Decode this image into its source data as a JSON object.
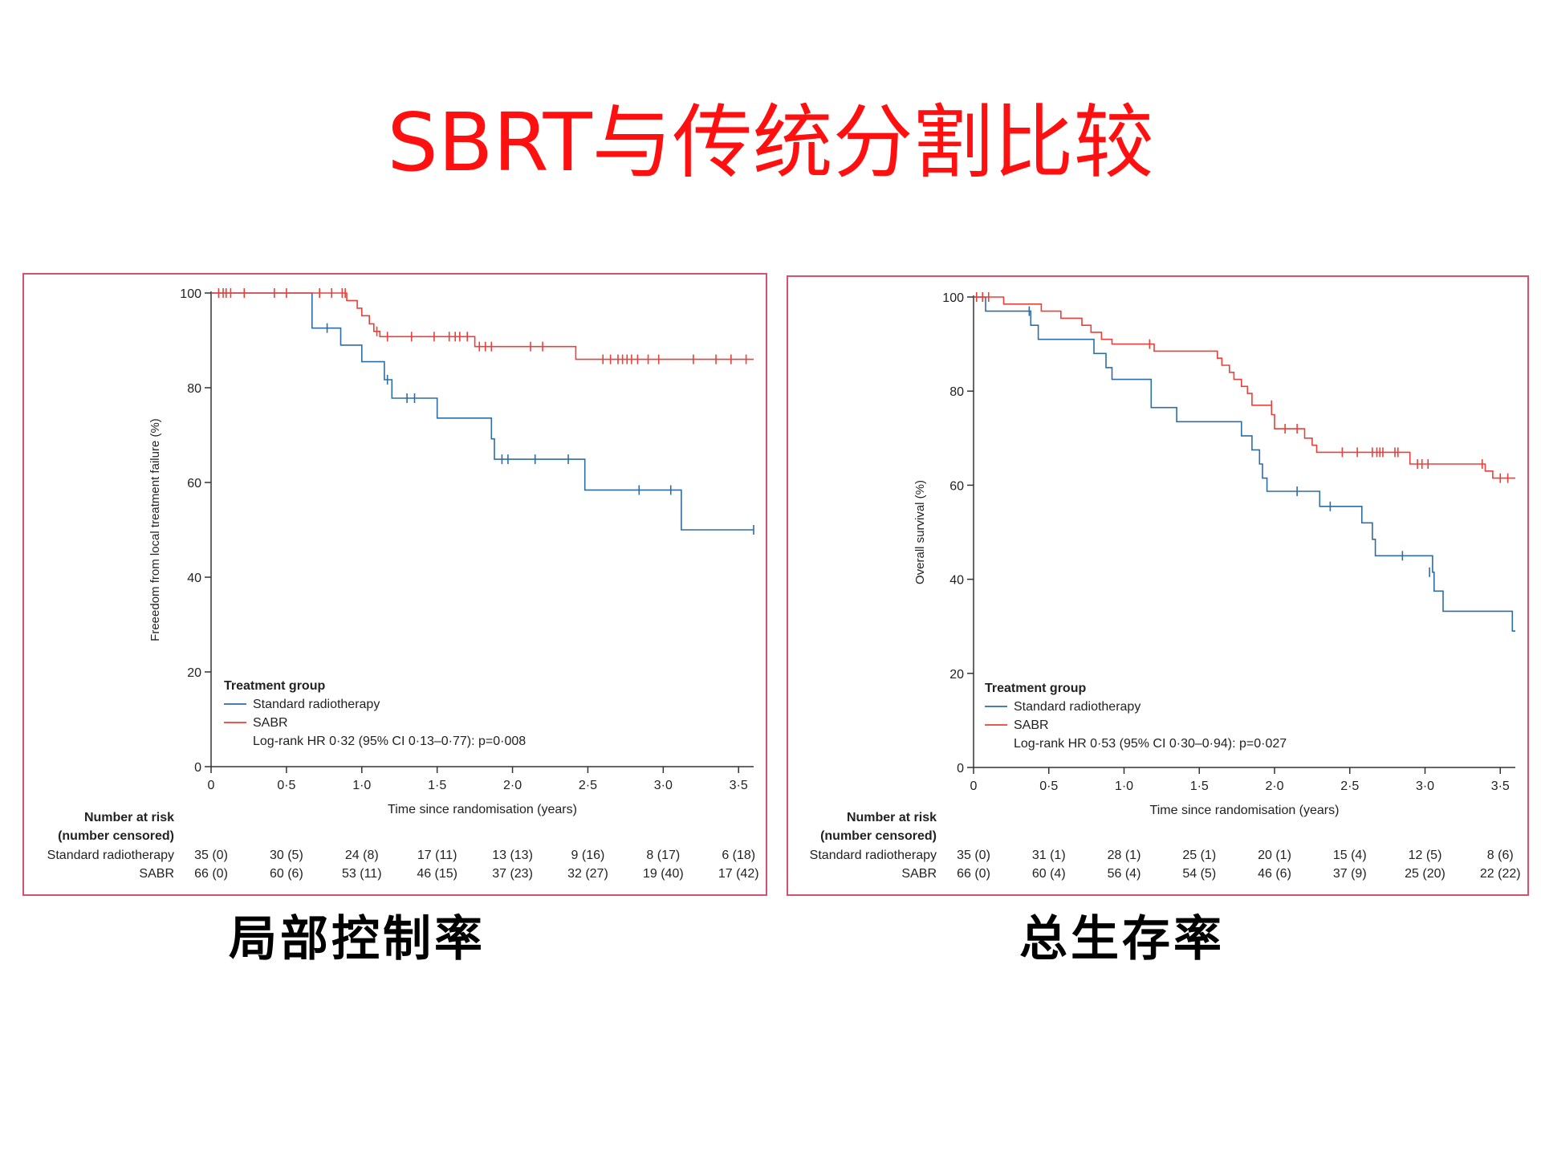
{
  "slide": {
    "title": "SBRT与传统分割比较",
    "caption_left": "局部控制率",
    "caption_right": "总生存率"
  },
  "chart_data": [
    {
      "type": "line",
      "title": "",
      "xlabel": "Time since randomisation (years)",
      "ylabel": "Freeedom from local treatment failure (%)",
      "xlim": [
        0,
        3.6
      ],
      "ylim": [
        0,
        100
      ],
      "xticks": [
        0,
        0.5,
        1.0,
        1.5,
        2.0,
        2.5,
        3.0,
        3.5
      ],
      "xtick_labels": [
        "0",
        "0·5",
        "1·0",
        "1·5",
        "2·0",
        "2·5",
        "3·0",
        "3·5"
      ],
      "yticks": [
        0,
        20,
        40,
        60,
        80,
        100
      ],
      "ytick_labels": [
        "0",
        "20",
        "40",
        "60",
        "80",
        "100"
      ],
      "legend": {
        "title": "Treatment group",
        "stat": "Log-rank HR 0·32 (95% CI 0·13–0·77): p=0·008",
        "placement": "bottom-left"
      },
      "series": [
        {
          "name": "Standard radiotherapy",
          "color": "#2e6da4",
          "steps": [
            [
              0,
              100
            ],
            [
              0.67,
              100
            ],
            [
              0.67,
              92.6
            ],
            [
              0.86,
              92.6
            ],
            [
              0.86,
              89
            ],
            [
              1.0,
              89
            ],
            [
              1.0,
              85.5
            ],
            [
              1.15,
              85.5
            ],
            [
              1.15,
              81.7
            ],
            [
              1.2,
              81.7
            ],
            [
              1.2,
              77.8
            ],
            [
              1.5,
              77.8
            ],
            [
              1.5,
              73.6
            ],
            [
              1.86,
              73.6
            ],
            [
              1.86,
              69.2
            ],
            [
              1.88,
              69.2
            ],
            [
              1.88,
              64.9
            ],
            [
              2.48,
              64.9
            ],
            [
              2.48,
              58.4
            ],
            [
              3.12,
              58.4
            ],
            [
              3.12,
              50
            ],
            [
              3.6,
              50
            ]
          ],
          "censors": [
            [
              0.77,
              92.6
            ],
            [
              1.17,
              81.7
            ],
            [
              1.3,
              77.8
            ],
            [
              1.35,
              77.8
            ],
            [
              1.93,
              64.9
            ],
            [
              1.97,
              64.9
            ],
            [
              2.15,
              64.9
            ],
            [
              2.37,
              64.9
            ],
            [
              2.84,
              58.4
            ],
            [
              3.05,
              58.4
            ],
            [
              3.6,
              50
            ]
          ]
        },
        {
          "name": "SABR",
          "color": "#e8403a",
          "steps": [
            [
              0,
              100
            ],
            [
              0.9,
              100
            ],
            [
              0.9,
              98.4
            ],
            [
              0.97,
              98.4
            ],
            [
              0.97,
              96.8
            ],
            [
              1.0,
              96.8
            ],
            [
              1.0,
              95.2
            ],
            [
              1.05,
              95.2
            ],
            [
              1.05,
              93.5
            ],
            [
              1.08,
              93.5
            ],
            [
              1.08,
              91.9
            ],
            [
              1.12,
              91.9
            ],
            [
              1.12,
              90.8
            ],
            [
              1.75,
              90.8
            ],
            [
              1.75,
              88.7
            ],
            [
              2.42,
              88.7
            ],
            [
              2.42,
              86
            ],
            [
              3.6,
              86
            ]
          ],
          "censors": [
            [
              0.05,
              100
            ],
            [
              0.08,
              100
            ],
            [
              0.1,
              100
            ],
            [
              0.13,
              100
            ],
            [
              0.22,
              100
            ],
            [
              0.42,
              100
            ],
            [
              0.5,
              100
            ],
            [
              0.72,
              100
            ],
            [
              0.8,
              100
            ],
            [
              0.87,
              100
            ],
            [
              0.89,
              100
            ],
            [
              1.1,
              91.9
            ],
            [
              1.17,
              90.8
            ],
            [
              1.33,
              90.8
            ],
            [
              1.48,
              90.8
            ],
            [
              1.58,
              90.8
            ],
            [
              1.62,
              90.8
            ],
            [
              1.65,
              90.8
            ],
            [
              1.7,
              90.8
            ],
            [
              1.78,
              88.7
            ],
            [
              1.82,
              88.7
            ],
            [
              1.86,
              88.7
            ],
            [
              2.12,
              88.7
            ],
            [
              2.2,
              88.7
            ],
            [
              2.6,
              86
            ],
            [
              2.65,
              86
            ],
            [
              2.7,
              86
            ],
            [
              2.73,
              86
            ],
            [
              2.76,
              86
            ],
            [
              2.79,
              86
            ],
            [
              2.83,
              86
            ],
            [
              2.9,
              86
            ],
            [
              2.97,
              86
            ],
            [
              3.2,
              86
            ],
            [
              3.35,
              86
            ],
            [
              3.45,
              86
            ],
            [
              3.55,
              86
            ]
          ]
        }
      ],
      "risk_table": {
        "header_line1": "Number at risk",
        "header_line2": "(number censored)",
        "rows": [
          {
            "label": "Standard radiotherapy",
            "values": [
              "35 (0)",
              "30 (5)",
              "24 (8)",
              "17 (11)",
              "13 (13)",
              "9 (16)",
              "8 (17)",
              "6 (18)"
            ]
          },
          {
            "label": "SABR",
            "values": [
              "66 (0)",
              "60 (6)",
              "53 (11)",
              "46 (15)",
              "37 (23)",
              "32 (27)",
              "19 (40)",
              "17 (42)"
            ]
          }
        ]
      }
    },
    {
      "type": "line",
      "title": "",
      "xlabel": "Time since randomisation (years)",
      "ylabel": "Overall survival (%)",
      "xlim": [
        0,
        3.6
      ],
      "ylim": [
        0,
        100
      ],
      "xticks": [
        0,
        0.5,
        1.0,
        1.5,
        2.0,
        2.5,
        3.0,
        3.5
      ],
      "xtick_labels": [
        "0",
        "0·5",
        "1·0",
        "1·5",
        "2·0",
        "2·5",
        "3·0",
        "3·5"
      ],
      "yticks": [
        0,
        20,
        40,
        60,
        80,
        100
      ],
      "ytick_labels": [
        "0",
        "20",
        "40",
        "60",
        "80",
        "100"
      ],
      "legend": {
        "title": "Treatment group",
        "stat": "Log-rank HR 0·53 (95% CI 0·30–0·94): p=0·027",
        "placement": "bottom-left"
      },
      "series": [
        {
          "name": "Standard radiotherapy",
          "color": "#2e6da4",
          "steps": [
            [
              0,
              100
            ],
            [
              0.08,
              100
            ],
            [
              0.08,
              97
            ],
            [
              0.38,
              97
            ],
            [
              0.38,
              94
            ],
            [
              0.43,
              94
            ],
            [
              0.43,
              91
            ],
            [
              0.8,
              91
            ],
            [
              0.8,
              88
            ],
            [
              0.88,
              88
            ],
            [
              0.88,
              85
            ],
            [
              0.92,
              85
            ],
            [
              0.92,
              82.5
            ],
            [
              1.18,
              82.5
            ],
            [
              1.18,
              79.5
            ],
            [
              1.18,
              79.5
            ],
            [
              1.18,
              76.5
            ],
            [
              1.35,
              76.5
            ],
            [
              1.35,
              73.5
            ],
            [
              1.78,
              73.5
            ],
            [
              1.78,
              70.5
            ],
            [
              1.85,
              70.5
            ],
            [
              1.85,
              67.5
            ],
            [
              1.9,
              67.5
            ],
            [
              1.9,
              64.5
            ],
            [
              1.92,
              64.5
            ],
            [
              1.92,
              61.5
            ],
            [
              1.95,
              61.5
            ],
            [
              1.95,
              58.7
            ],
            [
              2.3,
              58.7
            ],
            [
              2.3,
              55.5
            ],
            [
              2.58,
              55.5
            ],
            [
              2.58,
              52
            ],
            [
              2.65,
              52
            ],
            [
              2.65,
              48.5
            ],
            [
              2.67,
              48.5
            ],
            [
              2.67,
              45
            ],
            [
              3.05,
              45
            ],
            [
              3.05,
              41.5
            ],
            [
              3.06,
              41.5
            ],
            [
              3.06,
              37.5
            ],
            [
              3.12,
              37.5
            ],
            [
              3.12,
              33.2
            ],
            [
              3.58,
              33.2
            ],
            [
              3.58,
              29
            ],
            [
              3.6,
              29
            ]
          ],
          "censors": [
            [
              0.37,
              97
            ],
            [
              2.15,
              58.7
            ],
            [
              2.37,
              55.5
            ],
            [
              2.85,
              45
            ],
            [
              3.03,
              41.5
            ]
          ]
        },
        {
          "name": "SABR",
          "color": "#e8403a",
          "steps": [
            [
              0,
              100
            ],
            [
              0.2,
              100
            ],
            [
              0.2,
              98.5
            ],
            [
              0.45,
              98.5
            ],
            [
              0.45,
              97
            ],
            [
              0.58,
              97
            ],
            [
              0.58,
              95.5
            ],
            [
              0.72,
              95.5
            ],
            [
              0.72,
              94
            ],
            [
              0.78,
              94
            ],
            [
              0.78,
              92.5
            ],
            [
              0.85,
              92.5
            ],
            [
              0.85,
              91
            ],
            [
              0.92,
              91
            ],
            [
              0.92,
              90
            ],
            [
              1.2,
              90
            ],
            [
              1.2,
              88.5
            ],
            [
              1.62,
              88.5
            ],
            [
              1.62,
              87
            ],
            [
              1.65,
              87
            ],
            [
              1.65,
              85.5
            ],
            [
              1.7,
              85.5
            ],
            [
              1.7,
              84
            ],
            [
              1.73,
              84
            ],
            [
              1.73,
              82.5
            ],
            [
              1.78,
              82.5
            ],
            [
              1.78,
              81
            ],
            [
              1.82,
              81
            ],
            [
              1.82,
              79.5
            ],
            [
              1.85,
              79.5
            ],
            [
              1.85,
              77
            ],
            [
              1.98,
              77
            ],
            [
              1.98,
              75
            ],
            [
              2.0,
              75
            ],
            [
              2.0,
              72
            ],
            [
              2.2,
              72
            ],
            [
              2.2,
              70
            ],
            [
              2.25,
              70
            ],
            [
              2.25,
              68.5
            ],
            [
              2.28,
              68.5
            ],
            [
              2.28,
              67
            ],
            [
              2.9,
              67
            ],
            [
              2.9,
              64.5
            ],
            [
              3.4,
              64.5
            ],
            [
              3.4,
              63
            ],
            [
              3.45,
              63
            ],
            [
              3.45,
              61.5
            ],
            [
              3.6,
              61.5
            ]
          ],
          "censors": [
            [
              0.02,
              100
            ],
            [
              0.06,
              100
            ],
            [
              0.1,
              100
            ],
            [
              1.17,
              90
            ],
            [
              1.98,
              77
            ],
            [
              2.07,
              72
            ],
            [
              2.15,
              72
            ],
            [
              2.45,
              67
            ],
            [
              2.55,
              67
            ],
            [
              2.65,
              67
            ],
            [
              2.68,
              67
            ],
            [
              2.7,
              67
            ],
            [
              2.72,
              67
            ],
            [
              2.8,
              67
            ],
            [
              2.82,
              67
            ],
            [
              2.95,
              64.5
            ],
            [
              2.98,
              64.5
            ],
            [
              3.02,
              64.5
            ],
            [
              3.38,
              64.5
            ],
            [
              3.5,
              61.5
            ],
            [
              3.55,
              61.5
            ]
          ]
        }
      ],
      "risk_table": {
        "header_line1": "Number at risk",
        "header_line2": "(number censored)",
        "rows": [
          {
            "label": "Standard radiotherapy",
            "values": [
              "35 (0)",
              "31 (1)",
              "28 (1)",
              "25 (1)",
              "20 (1)",
              "15 (4)",
              "12 (5)",
              "8 (6)"
            ]
          },
          {
            "label": "SABR",
            "values": [
              "66 (0)",
              "60 (4)",
              "56 (4)",
              "54 (5)",
              "46 (6)",
              "37 (9)",
              "25 (20)",
              "22 (22)"
            ]
          }
        ]
      }
    }
  ]
}
